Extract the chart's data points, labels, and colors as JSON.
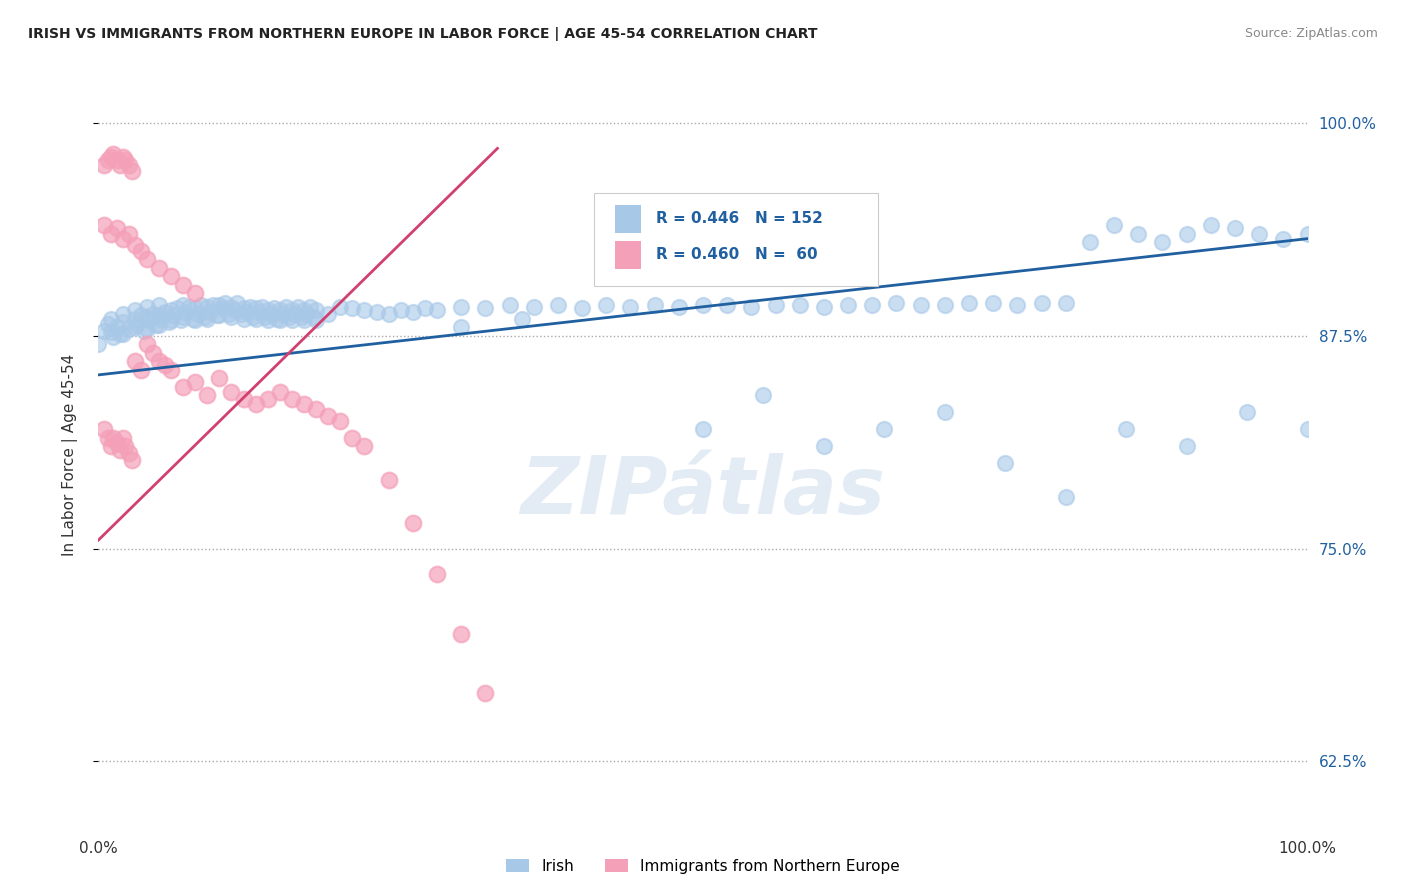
{
  "title": "IRISH VS IMMIGRANTS FROM NORTHERN EUROPE IN LABOR FORCE | AGE 45-54 CORRELATION CHART",
  "source": "Source: ZipAtlas.com",
  "ylabel": "In Labor Force | Age 45-54",
  "ytick_values": [
    0.625,
    0.75,
    0.875,
    1.0
  ],
  "ytick_labels": [
    "62.5%",
    "75.0%",
    "87.5%",
    "100.0%"
  ],
  "legend_irish_R": "0.446",
  "legend_irish_N": "152",
  "legend_immig_R": "0.460",
  "legend_immig_N": "60",
  "irish_color": "#a8c8e8",
  "immig_color": "#f4a0b8",
  "irish_line_color": "#2060a0",
  "immig_line_color": "#d04070",
  "legend_text_color": "#2060a0",
  "watermark": "ZIPátlas",
  "background_color": "#ffffff",
  "irish_x": [
    0.0,
    0.005,
    0.008,
    0.01,
    0.01,
    0.012,
    0.015,
    0.018,
    0.02,
    0.02,
    0.02,
    0.025,
    0.03,
    0.03,
    0.03,
    0.032,
    0.035,
    0.038,
    0.04,
    0.04,
    0.04,
    0.042,
    0.045,
    0.048,
    0.05,
    0.05,
    0.05,
    0.052,
    0.055,
    0.058,
    0.06,
    0.06,
    0.062,
    0.065,
    0.068,
    0.07,
    0.07,
    0.072,
    0.075,
    0.078,
    0.08,
    0.08,
    0.082,
    0.085,
    0.088,
    0.09,
    0.09,
    0.092,
    0.095,
    0.098,
    0.1,
    0.1,
    0.102,
    0.105,
    0.108,
    0.11,
    0.11,
    0.112,
    0.115,
    0.118,
    0.12,
    0.12,
    0.122,
    0.125,
    0.128,
    0.13,
    0.13,
    0.132,
    0.135,
    0.138,
    0.14,
    0.14,
    0.142,
    0.145,
    0.148,
    0.15,
    0.15,
    0.152,
    0.155,
    0.158,
    0.16,
    0.16,
    0.162,
    0.165,
    0.168,
    0.17,
    0.17,
    0.172,
    0.175,
    0.178,
    0.18,
    0.18,
    0.19,
    0.2,
    0.21,
    0.22,
    0.23,
    0.24,
    0.25,
    0.26,
    0.27,
    0.28,
    0.3,
    0.32,
    0.34,
    0.36,
    0.38,
    0.4,
    0.42,
    0.44,
    0.46,
    0.48,
    0.5,
    0.52,
    0.54,
    0.56,
    0.58,
    0.6,
    0.62,
    0.64,
    0.66,
    0.68,
    0.7,
    0.72,
    0.74,
    0.76,
    0.78,
    0.8,
    0.82,
    0.84,
    0.86,
    0.88,
    0.9,
    0.92,
    0.94,
    0.96,
    0.98,
    1.0,
    0.5,
    0.55,
    0.6,
    0.65,
    0.7,
    0.75,
    0.8,
    0.85,
    0.9,
    0.95,
    1.0,
    0.3,
    0.35
  ],
  "irish_y": [
    0.87,
    0.878,
    0.882,
    0.885,
    0.877,
    0.874,
    0.88,
    0.876,
    0.888,
    0.883,
    0.876,
    0.879,
    0.89,
    0.885,
    0.88,
    0.882,
    0.887,
    0.878,
    0.892,
    0.886,
    0.879,
    0.884,
    0.888,
    0.881,
    0.893,
    0.887,
    0.881,
    0.885,
    0.889,
    0.883,
    0.89,
    0.884,
    0.887,
    0.891,
    0.884,
    0.893,
    0.886,
    0.889,
    0.892,
    0.885,
    0.891,
    0.884,
    0.888,
    0.893,
    0.886,
    0.892,
    0.885,
    0.889,
    0.893,
    0.887,
    0.893,
    0.887,
    0.891,
    0.894,
    0.888,
    0.892,
    0.886,
    0.89,
    0.894,
    0.888,
    0.891,
    0.885,
    0.889,
    0.892,
    0.886,
    0.891,
    0.885,
    0.889,
    0.892,
    0.886,
    0.89,
    0.884,
    0.888,
    0.891,
    0.885,
    0.89,
    0.884,
    0.888,
    0.892,
    0.886,
    0.89,
    0.884,
    0.888,
    0.892,
    0.886,
    0.89,
    0.884,
    0.888,
    0.892,
    0.886,
    0.89,
    0.884,
    0.888,
    0.892,
    0.891,
    0.89,
    0.889,
    0.888,
    0.89,
    0.889,
    0.891,
    0.89,
    0.892,
    0.891,
    0.893,
    0.892,
    0.893,
    0.891,
    0.893,
    0.892,
    0.893,
    0.892,
    0.893,
    0.893,
    0.892,
    0.893,
    0.893,
    0.892,
    0.893,
    0.893,
    0.894,
    0.893,
    0.893,
    0.894,
    0.894,
    0.893,
    0.894,
    0.894,
    0.93,
    0.94,
    0.935,
    0.93,
    0.935,
    0.94,
    0.938,
    0.935,
    0.932,
    0.935,
    0.82,
    0.84,
    0.81,
    0.82,
    0.83,
    0.8,
    0.78,
    0.82,
    0.81,
    0.83,
    0.82,
    0.88,
    0.885
  ],
  "immig_x": [
    0.005,
    0.008,
    0.01,
    0.012,
    0.015,
    0.018,
    0.02,
    0.022,
    0.025,
    0.028,
    0.005,
    0.008,
    0.01,
    0.012,
    0.015,
    0.018,
    0.02,
    0.022,
    0.025,
    0.028,
    0.03,
    0.035,
    0.04,
    0.045,
    0.05,
    0.055,
    0.06,
    0.07,
    0.08,
    0.09,
    0.1,
    0.11,
    0.12,
    0.13,
    0.14,
    0.15,
    0.16,
    0.17,
    0.18,
    0.19,
    0.2,
    0.21,
    0.22,
    0.24,
    0.26,
    0.28,
    0.3,
    0.32,
    0.005,
    0.01,
    0.015,
    0.02,
    0.025,
    0.03,
    0.035,
    0.04,
    0.05,
    0.06,
    0.07,
    0.08
  ],
  "immig_y": [
    0.975,
    0.978,
    0.98,
    0.982,
    0.978,
    0.975,
    0.98,
    0.978,
    0.975,
    0.972,
    0.82,
    0.815,
    0.81,
    0.815,
    0.812,
    0.808,
    0.815,
    0.81,
    0.806,
    0.802,
    0.86,
    0.855,
    0.87,
    0.865,
    0.86,
    0.858,
    0.855,
    0.845,
    0.848,
    0.84,
    0.85,
    0.842,
    0.838,
    0.835,
    0.838,
    0.842,
    0.838,
    0.835,
    0.832,
    0.828,
    0.825,
    0.815,
    0.81,
    0.79,
    0.765,
    0.735,
    0.7,
    0.665,
    0.94,
    0.935,
    0.938,
    0.932,
    0.935,
    0.928,
    0.925,
    0.92,
    0.915,
    0.91,
    0.905,
    0.9
  ]
}
